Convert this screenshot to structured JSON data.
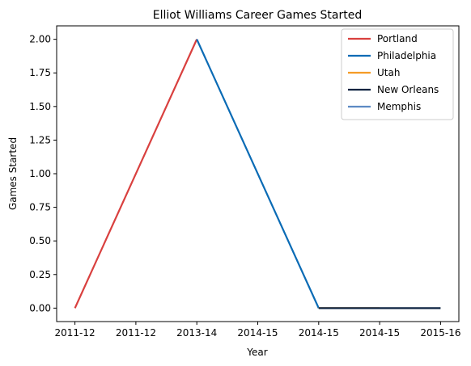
{
  "chart_data": {
    "type": "line",
    "title": "Elliot Williams Career Games Started",
    "xlabel": "Year",
    "ylabel": "Games Started",
    "categories": [
      "2011-12",
      "2011-12",
      "2013-14",
      "2014-15",
      "2014-15",
      "2014-15",
      "2015-16"
    ],
    "ylim": [
      -0.1,
      2.1
    ],
    "yticks": [
      "0.00",
      "0.25",
      "0.50",
      "0.75",
      "1.00",
      "1.25",
      "1.50",
      "1.75",
      "2.00"
    ],
    "grid": false,
    "legend_position": "top-right",
    "series": [
      {
        "name": "Portland",
        "color": "#d9403f",
        "points": [
          [
            0,
            0
          ],
          [
            2,
            2
          ]
        ]
      },
      {
        "name": "Philadelphia",
        "color": "#0a6bb5",
        "points": [
          [
            2,
            2
          ],
          [
            4,
            0
          ]
        ]
      },
      {
        "name": "Utah",
        "color": "#f59c26",
        "points": [
          [
            4,
            0
          ],
          [
            5,
            0
          ]
        ]
      },
      {
        "name": "New Orleans",
        "color": "#0b2240",
        "points": [
          [
            4,
            0
          ],
          [
            6,
            0
          ]
        ]
      },
      {
        "name": "Memphis",
        "color": "#5d8ac4",
        "points": []
      }
    ]
  }
}
